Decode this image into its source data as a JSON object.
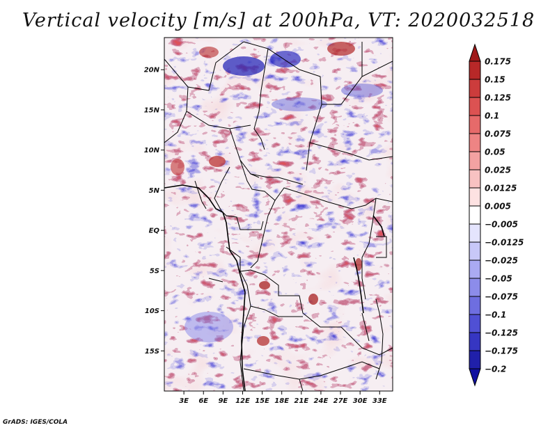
{
  "title": "Vertical velocity [m/s] at 200hPa, VT: 2020032518",
  "footer": "GrADS: IGES/COLA",
  "map": {
    "lat_range": [
      -20,
      24
    ],
    "lon_range": [
      0,
      35
    ],
    "lat_ticks": [
      {
        "value": 20,
        "label": "20N"
      },
      {
        "value": 15,
        "label": "15N"
      },
      {
        "value": 10,
        "label": "10N"
      },
      {
        "value": 5,
        "label": "5N"
      },
      {
        "value": 0,
        "label": "EQ"
      },
      {
        "value": -5,
        "label": "5S"
      },
      {
        "value": -10,
        "label": "10S"
      },
      {
        "value": -15,
        "label": "15S"
      }
    ],
    "lon_ticks": [
      {
        "value": 3,
        "label": "3E"
      },
      {
        "value": 6,
        "label": "6E"
      },
      {
        "value": 9,
        "label": "9E"
      },
      {
        "value": 12,
        "label": "12E"
      },
      {
        "value": 15,
        "label": "15E"
      },
      {
        "value": 18,
        "label": "18E"
      },
      {
        "value": 21,
        "label": "21E"
      },
      {
        "value": 24,
        "label": "24E"
      },
      {
        "value": 27,
        "label": "27E"
      },
      {
        "value": 30,
        "label": "30E"
      },
      {
        "value": 33,
        "label": "33E"
      }
    ]
  },
  "colorbar": {
    "labels": [
      "0.175",
      "0.15",
      "0.125",
      "0.1",
      "0.075",
      "0.05",
      "0.025",
      "0.0125",
      "0.005",
      "−0.005",
      "−0.0125",
      "−0.025",
      "−0.05",
      "−0.075",
      "−0.1",
      "−0.125",
      "−0.175",
      "−0.2"
    ],
    "colors": [
      "#a01a1a",
      "#b82828",
      "#cc3c3c",
      "#dc5252",
      "#e66a6a",
      "#ee8484",
      "#f3a2a2",
      "#f8c2c2",
      "#fde2e2",
      "#ffffff",
      "#e4e4fd",
      "#c8c8f8",
      "#aaaaf2",
      "#8c8cea",
      "#6e6ee0",
      "#5050d4",
      "#3636c2",
      "#2020aa",
      "#1010a0"
    ]
  }
}
